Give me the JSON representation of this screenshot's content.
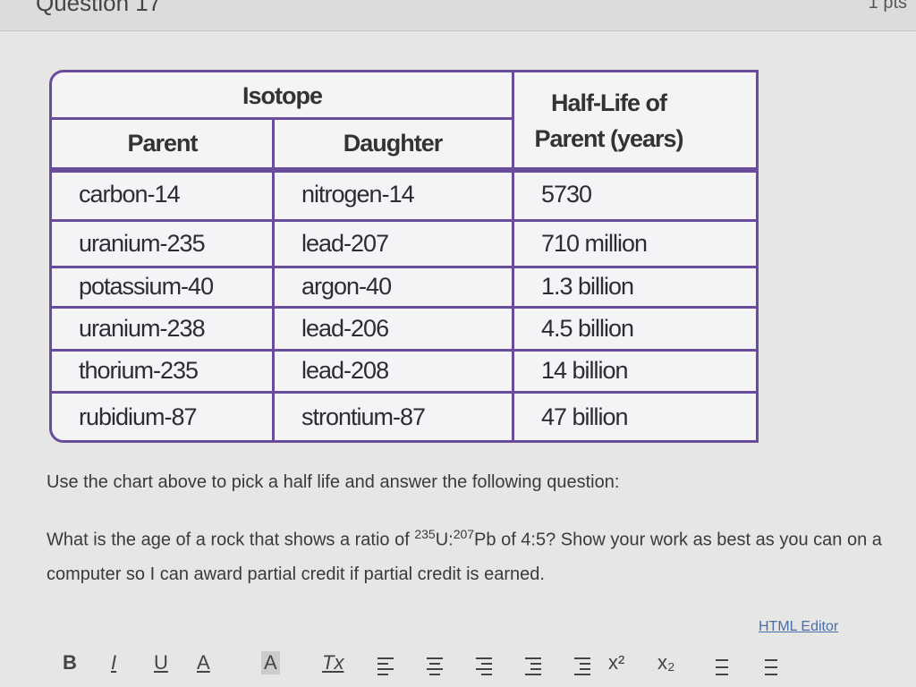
{
  "header": {
    "title": "Question 17",
    "points": "1 pts"
  },
  "table": {
    "group_header": "Isotope",
    "half_life_header": "Half-Life of Parent (years)",
    "sub_headers": [
      "Parent",
      "Daughter"
    ],
    "rows": [
      [
        "carbon-14",
        "nitrogen-14",
        "5730"
      ],
      [
        "uranium-235",
        "lead-207",
        "710 million"
      ],
      [
        "potassium-40",
        "argon-40",
        "1.3 billion"
      ],
      [
        "uranium-238",
        "lead-206",
        "4.5 billion"
      ],
      [
        "thorium-235",
        "lead-208",
        "14 billion"
      ],
      [
        "rubidium-87",
        "strontium-87",
        "47 billion"
      ]
    ]
  },
  "instruction": "Use the chart above to pick a half life and answer the following question:",
  "question": {
    "before": "What is the age of a rock that shows a ratio of ",
    "sup1": "235",
    "mid": "U:",
    "sup2": "207",
    "after": "Pb of 4:5? Show your work as best as you can on a computer so I can award partial credit if partial credit is earned."
  },
  "editor_link": "HTML Editor",
  "toolbar": [
    "B",
    "I",
    "U",
    "A",
    "A",
    "Tx",
    "x²",
    "x₂"
  ]
}
